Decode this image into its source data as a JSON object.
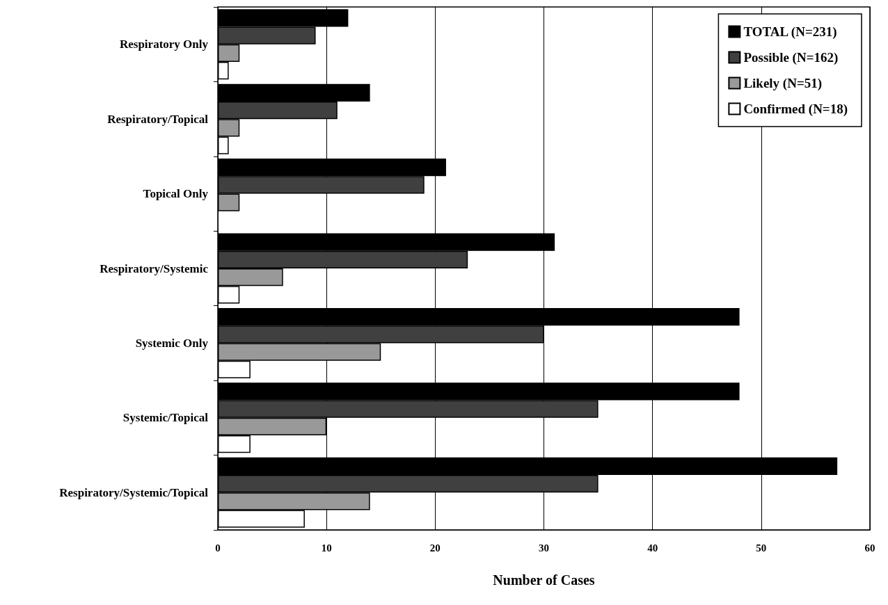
{
  "chart_data": {
    "type": "bar",
    "orientation": "horizontal",
    "xlabel": "Number of Cases",
    "categories": [
      "Respiratory Only",
      "Respiratory/Topical",
      "Topical Only",
      "Respiratory/Systemic",
      "Systemic Only",
      "Systemic/Topical",
      "Respiratory/Systemic/Topical"
    ],
    "series": [
      {
        "name": "TOTAL (N=231)",
        "color": "#000000",
        "values": [
          12,
          14,
          21,
          31,
          48,
          48,
          57
        ]
      },
      {
        "name": "Possible (N=162)",
        "color": "#404040",
        "values": [
          9,
          11,
          19,
          23,
          30,
          35,
          35
        ]
      },
      {
        "name": "Likely (N=51)",
        "color": "#999999",
        "values": [
          2,
          2,
          2,
          6,
          15,
          10,
          14
        ]
      },
      {
        "name": "Confirmed (N=18)",
        "color": "#ffffff",
        "values": [
          1,
          1,
          0,
          2,
          3,
          3,
          8
        ]
      }
    ],
    "xlim": [
      0,
      60
    ],
    "xticks": [
      0,
      10,
      20,
      30,
      40,
      50,
      60
    ],
    "grid": "x",
    "legend": "top right"
  }
}
